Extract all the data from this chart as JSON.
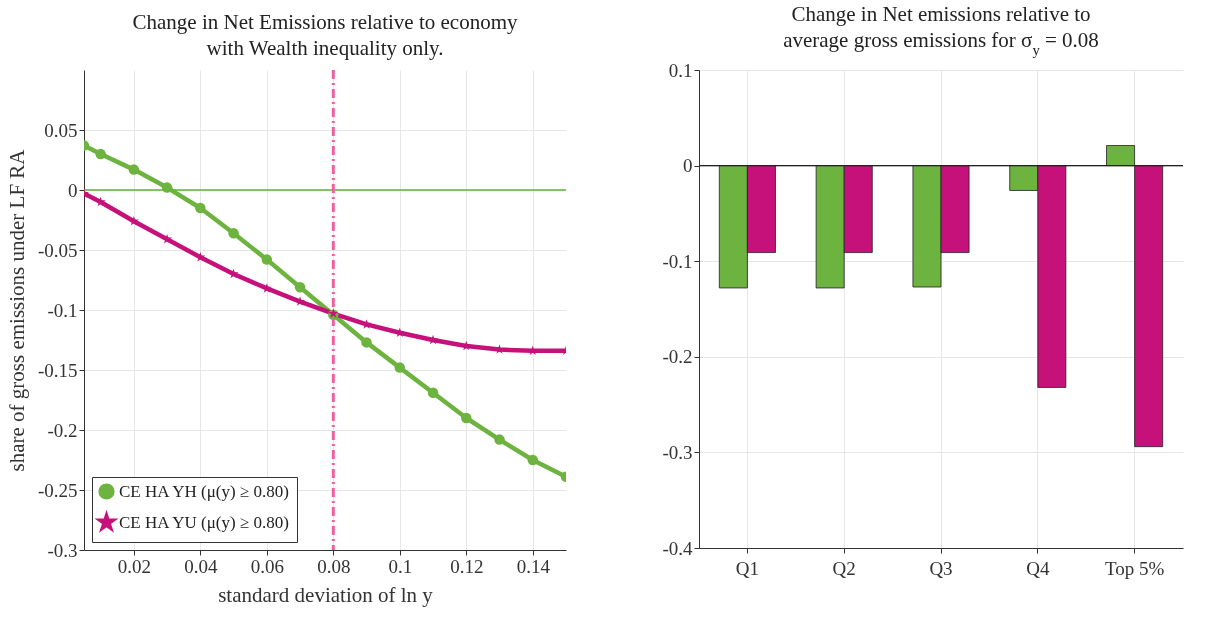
{
  "chart_data": [
    {
      "type": "line",
      "title": "Change in Net Emissions relative to economy\nwith Wealth inequality only.",
      "xlabel": "standard deviation of ln y",
      "ylabel": "share of gross emissions under LF RA",
      "x": [
        0.005,
        0.01,
        0.02,
        0.03,
        0.04,
        0.05,
        0.06,
        0.07,
        0.08,
        0.09,
        0.1,
        0.11,
        0.12,
        0.13,
        0.14,
        0.15
      ],
      "series": [
        {
          "name": "CE HA YH (μ(y) ≥ 0.80)",
          "color": "#6db33f",
          "marker": "circle",
          "values": [
            0.037,
            0.03,
            0.017,
            0.002,
            -0.015,
            -0.036,
            -0.058,
            -0.081,
            -0.104,
            -0.127,
            -0.148,
            -0.169,
            -0.19,
            -0.208,
            -0.225,
            -0.239
          ]
        },
        {
          "name": "CE HA YU (μ(y) ≥ 0.80)",
          "color": "#c6117b",
          "marker": "star",
          "values": [
            -0.003,
            -0.01,
            -0.026,
            -0.041,
            -0.056,
            -0.07,
            -0.082,
            -0.093,
            -0.103,
            -0.112,
            -0.119,
            -0.125,
            -0.13,
            -0.133,
            -0.134,
            -0.134
          ]
        }
      ],
      "xlim": [
        0.005,
        0.15
      ],
      "xticks": [
        0.02,
        0.04,
        0.06,
        0.08,
        0.1,
        0.12,
        0.14
      ],
      "ylim": [
        -0.3,
        0.1
      ],
      "yticks": [
        -0.3,
        -0.25,
        -0.2,
        -0.15,
        -0.1,
        -0.05,
        0,
        0.05
      ],
      "ref_lines": [
        {
          "axis": "y",
          "value": 0,
          "color": "#5cb33a"
        },
        {
          "axis": "x",
          "value": 0.08,
          "color": "#f0609e",
          "line_style": "dashed"
        }
      ],
      "grid": true,
      "legend": "bottom left",
      "line_style": "solid"
    },
    {
      "type": "bar",
      "title": "Change in Net emissions relative to\naverage gross emissions for σ$_{y}$ = 0.08",
      "categories": [
        "Q1",
        "Q2",
        "Q3",
        "Q4",
        "Top 5%"
      ],
      "series": [
        {
          "color": "#6db33f",
          "values": [
            -0.128,
            -0.128,
            -0.127,
            -0.026,
            0.021
          ]
        },
        {
          "color": "#c6117b",
          "values": [
            -0.091,
            -0.091,
            -0.091,
            -0.232,
            -0.294
          ]
        }
      ],
      "ylim": [
        -0.4,
        0.1
      ],
      "yticks": [
        -0.4,
        -0.3,
        -0.2,
        -0.1,
        0,
        0.1
      ],
      "ref_lines": [
        {
          "axis": "y",
          "value": 0,
          "color": "#222222"
        }
      ],
      "grid": true
    }
  ]
}
